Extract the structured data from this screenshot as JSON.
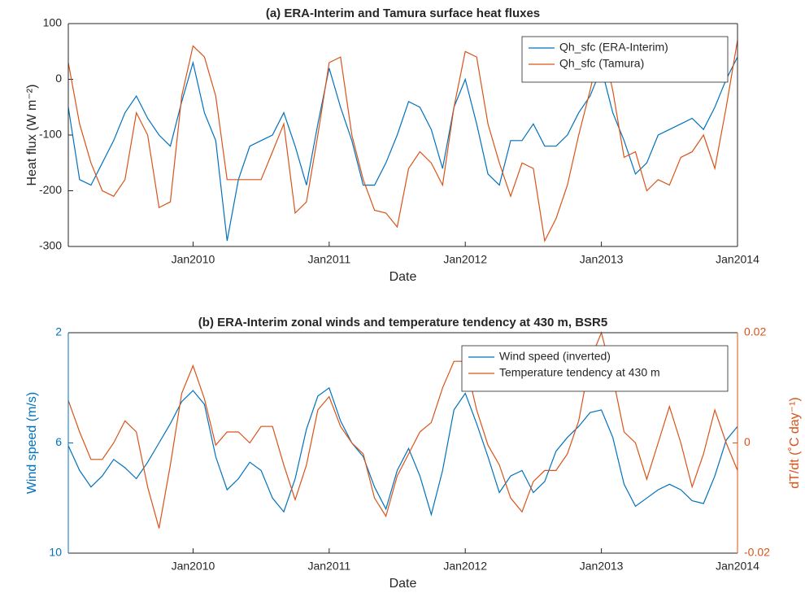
{
  "chart_data": [
    {
      "type": "line",
      "title": "(a) ERA-Interim and Tamura surface heat fluxes",
      "xlabel": "Date",
      "ylabel": "Heat flux (W m⁻²)",
      "x": [
        "2009-02",
        "2009-03",
        "2009-04",
        "2009-05",
        "2009-06",
        "2009-07",
        "2009-08",
        "2009-09",
        "2009-10",
        "2009-11",
        "2009-12",
        "2010-01",
        "2010-02",
        "2010-03",
        "2010-04",
        "2010-05",
        "2010-06",
        "2010-07",
        "2010-08",
        "2010-09",
        "2010-10",
        "2010-11",
        "2010-12",
        "2011-01",
        "2011-02",
        "2011-03",
        "2011-04",
        "2011-05",
        "2011-06",
        "2011-07",
        "2011-08",
        "2011-09",
        "2011-10",
        "2011-11",
        "2011-12",
        "2012-01",
        "2012-02",
        "2012-03",
        "2012-04",
        "2012-05",
        "2012-06",
        "2012-07",
        "2012-08",
        "2012-09",
        "2012-10",
        "2012-11",
        "2012-12",
        "2013-01",
        "2013-02",
        "2013-03",
        "2013-04",
        "2013-05",
        "2013-06",
        "2013-07",
        "2013-08",
        "2013-09",
        "2013-10",
        "2013-11",
        "2013-12",
        "2014-01"
      ],
      "series": [
        {
          "name": "Qh_sfc (ERA-Interim)",
          "color": "#0072bd",
          "values": [
            -50,
            -180,
            -190,
            -150,
            -110,
            -60,
            -30,
            -70,
            -100,
            -120,
            -40,
            30,
            -60,
            -110,
            -290,
            -180,
            -120,
            -110,
            -100,
            -60,
            -120,
            -190,
            -80,
            20,
            -50,
            -110,
            -190,
            -190,
            -150,
            -100,
            -40,
            -50,
            -90,
            -160,
            -50,
            0,
            -80,
            -170,
            -190,
            -110,
            -110,
            -80,
            -120,
            -120,
            -100,
            -60,
            -30,
            20,
            -60,
            -110,
            -170,
            -150,
            -100,
            -90,
            -80,
            -70,
            -90,
            -50,
            0,
            40
          ]
        },
        {
          "name": "Qh_sfc (Tamura)",
          "color": "#d95319",
          "values": [
            30,
            -80,
            -150,
            -200,
            -210,
            -180,
            -60,
            -100,
            -230,
            -220,
            -30,
            60,
            40,
            -30,
            -180,
            -180,
            -180,
            -180,
            -130,
            -80,
            -240,
            -220,
            -100,
            30,
            40,
            -100,
            -180,
            -235,
            -240,
            -265,
            -160,
            -130,
            -150,
            -190,
            -50,
            50,
            40,
            -80,
            -150,
            -210,
            -150,
            -160,
            -290,
            -250,
            -190,
            -100,
            -20,
            70,
            -20,
            -140,
            -130,
            -200,
            -180,
            -190,
            -140,
            -130,
            -100,
            -160,
            -50,
            70
          ]
        }
      ],
      "xlim": [
        "2009-02",
        "2014-01"
      ],
      "xticks": [
        {
          "value": "2010-01",
          "label": "Jan2010"
        },
        {
          "value": "2011-01",
          "label": "Jan2011"
        },
        {
          "value": "2012-01",
          "label": "Jan2012"
        },
        {
          "value": "2013-01",
          "label": "Jan2013"
        },
        {
          "value": "2014-01",
          "label": "Jan2014"
        }
      ],
      "ylim": [
        -300,
        100
      ],
      "yticks": [
        -300,
        -200,
        -100,
        0,
        100
      ],
      "legend": "upper right"
    },
    {
      "type": "line",
      "title": "(b) ERA-Interim zonal winds and temperature tendency at 430 m, BSR5",
      "xlabel": "Date",
      "ylabel": "Wind speed (m/s)",
      "y2label": "dT/dt (˚C day⁻¹)",
      "x": [
        "2009-02",
        "2009-03",
        "2009-04",
        "2009-05",
        "2009-06",
        "2009-07",
        "2009-08",
        "2009-09",
        "2009-10",
        "2009-11",
        "2009-12",
        "2010-01",
        "2010-02",
        "2010-03",
        "2010-04",
        "2010-05",
        "2010-06",
        "2010-07",
        "2010-08",
        "2010-09",
        "2010-10",
        "2010-11",
        "2010-12",
        "2011-01",
        "2011-02",
        "2011-03",
        "2011-04",
        "2011-05",
        "2011-06",
        "2011-07",
        "2011-08",
        "2011-09",
        "2011-10",
        "2011-11",
        "2011-12",
        "2012-01",
        "2012-02",
        "2012-03",
        "2012-04",
        "2012-05",
        "2012-06",
        "2012-07",
        "2012-08",
        "2012-09",
        "2012-10",
        "2012-11",
        "2012-12",
        "2013-01",
        "2013-02",
        "2013-03",
        "2013-04",
        "2013-05",
        "2013-06",
        "2013-07",
        "2013-08",
        "2013-09",
        "2013-10",
        "2013-11",
        "2013-12",
        "2014-01"
      ],
      "series": [
        {
          "name": "Wind speed (inverted)",
          "color": "#0072bd",
          "values": [
            6.1,
            7.0,
            7.6,
            7.2,
            6.6,
            6.9,
            7.3,
            6.7,
            6.0,
            5.3,
            4.5,
            4.1,
            4.6,
            6.5,
            7.7,
            7.3,
            6.7,
            7.0,
            8.0,
            8.5,
            7.3,
            5.5,
            4.3,
            4.0,
            5.2,
            6.0,
            6.5,
            7.6,
            8.4,
            7.0,
            6.2,
            7.2,
            8.6,
            7.0,
            4.8,
            4.2,
            5.3,
            6.5,
            7.8,
            7.2,
            7.0,
            7.8,
            7.4,
            6.3,
            5.8,
            5.4,
            4.9,
            4.8,
            5.8,
            7.5,
            8.3,
            8.0,
            7.7,
            7.5,
            7.7,
            8.1,
            8.2,
            7.2,
            5.9,
            5.4
          ]
        },
        {
          "name": "Temperature tendency at 430 m",
          "color": "#d95319",
          "axis": "y2",
          "values": [
            0.0077,
            0.002,
            -0.003,
            -0.003,
            0,
            0.004,
            0.002,
            -0.008,
            -0.0155,
            -0.004,
            0.009,
            0.014,
            0.008,
            -0.0004,
            0.002,
            0.002,
            0,
            0.003,
            0.003,
            -0.004,
            -0.0103,
            -0.004,
            0.006,
            0.0084,
            0.003,
            0,
            -0.002,
            -0.01,
            -0.0133,
            -0.006,
            -0.002,
            0.002,
            0.0037,
            0.01,
            0.0148,
            0.0148,
            0.006,
            -0.0004,
            -0.004,
            -0.01,
            -0.0125,
            -0.007,
            -0.005,
            -0.005,
            -0.002,
            0.004,
            0.015,
            0.02,
            0.012,
            0.002,
            0,
            -0.0066,
            0,
            0.0066,
            0,
            -0.008,
            -0.002,
            0.006,
            0,
            -0.005
          ]
        }
      ],
      "xlim": [
        "2009-02",
        "2014-01"
      ],
      "xticks": [
        {
          "value": "2010-01",
          "label": "Jan2010"
        },
        {
          "value": "2011-01",
          "label": "Jan2011"
        },
        {
          "value": "2012-01",
          "label": "Jan2012"
        },
        {
          "value": "2013-01",
          "label": "Jan2013"
        },
        {
          "value": "2014-01",
          "label": "Jan2014"
        }
      ],
      "ylim": [
        10,
        2
      ],
      "yticks": [
        2,
        6,
        10
      ],
      "ycolor": "#0072bd",
      "y2lim": [
        -0.02,
        0.02
      ],
      "y2ticks": [
        -0.02,
        0,
        0.02
      ],
      "y2color": "#d95319",
      "legend": "upper right"
    }
  ]
}
